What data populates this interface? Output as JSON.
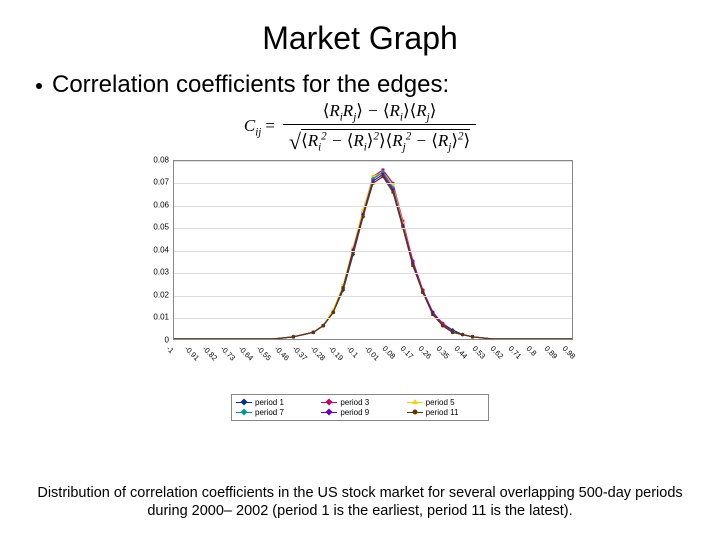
{
  "title": "Market Graph",
  "bullet": "Correlation coefficients for the edges:",
  "formula": {
    "lhs_var": "C",
    "lhs_sub": "ij",
    "num": "⟨R_i R_j⟩ − ⟨R_i⟩⟨R_j⟩",
    "den": "√(⟨R_i² − ⟨R_i⟩²⟩⟨R_j² − ⟨R_j⟩²⟩)"
  },
  "chart": {
    "type": "line",
    "background_color": "#ffffff",
    "border_color": "#888888",
    "grid_color": "#dddddd",
    "ylim": [
      0,
      0.08
    ],
    "ytick_step": 0.01,
    "yticks": [
      "0",
      "0.01",
      "0.02",
      "0.03",
      "0.04",
      "0.05",
      "0.06",
      "0.07",
      "0.08"
    ],
    "xlim": [
      -1,
      1
    ],
    "xticks": [
      "-1",
      "-0.91",
      "-0.82",
      "-0.73",
      "-0.64",
      "-0.55",
      "-0.46",
      "-0.37",
      "-0.28",
      "-0.19",
      "-0.1",
      "-0.01",
      "0.08",
      "0.17",
      "0.26",
      "0.35",
      "0.44",
      "0.53",
      "0.62",
      "0.71",
      "0.8",
      "0.89",
      "0.98"
    ],
    "axis_fontsize": 8,
    "x_positions": [
      -1,
      -0.9,
      -0.8,
      -0.7,
      -0.6,
      -0.5,
      -0.4,
      -0.3,
      -0.25,
      -0.2,
      -0.15,
      -0.1,
      -0.05,
      0,
      0.05,
      0.1,
      0.15,
      0.2,
      0.25,
      0.3,
      0.35,
      0.4,
      0.45,
      0.5,
      0.6,
      0.7,
      0.8,
      0.9,
      1
    ],
    "series": [
      {
        "name": "period 1",
        "color": "#003399",
        "marker": "diamond",
        "values": [
          0,
          0,
          0,
          0,
          0,
          0,
          0.001,
          0.003,
          0.006,
          0.012,
          0.022,
          0.038,
          0.055,
          0.072,
          0.075,
          0.068,
          0.052,
          0.035,
          0.022,
          0.012,
          0.007,
          0.004,
          0.002,
          0.001,
          0,
          0,
          0,
          0,
          0
        ]
      },
      {
        "name": "period 3",
        "color": "#cc0066",
        "marker": "square",
        "values": [
          0,
          0,
          0,
          0,
          0,
          0,
          0.001,
          0.003,
          0.006,
          0.012,
          0.024,
          0.04,
          0.057,
          0.073,
          0.076,
          0.07,
          0.053,
          0.035,
          0.022,
          0.012,
          0.007,
          0.003,
          0.002,
          0.001,
          0,
          0,
          0,
          0,
          0
        ]
      },
      {
        "name": "period 5",
        "color": "#ffcc00",
        "marker": "triangle",
        "values": [
          0,
          0,
          0,
          0,
          0,
          0,
          0.001,
          0.003,
          0.006,
          0.013,
          0.024,
          0.041,
          0.058,
          0.073,
          0.075,
          0.069,
          0.052,
          0.034,
          0.021,
          0.012,
          0.006,
          0.003,
          0.002,
          0.001,
          0,
          0,
          0,
          0,
          0
        ]
      },
      {
        "name": "period 7",
        "color": "#009999",
        "marker": "diamond",
        "values": [
          0,
          0,
          0,
          0,
          0,
          0,
          0.001,
          0.003,
          0.006,
          0.012,
          0.023,
          0.039,
          0.056,
          0.072,
          0.075,
          0.068,
          0.051,
          0.034,
          0.021,
          0.012,
          0.006,
          0.003,
          0.002,
          0.001,
          0,
          0,
          0,
          0,
          0
        ]
      },
      {
        "name": "period 9",
        "color": "#6600cc",
        "marker": "square",
        "values": [
          0,
          0,
          0,
          0,
          0,
          0,
          0.001,
          0.003,
          0.006,
          0.012,
          0.023,
          0.04,
          0.056,
          0.071,
          0.074,
          0.067,
          0.051,
          0.034,
          0.021,
          0.012,
          0.006,
          0.003,
          0.002,
          0.001,
          0,
          0,
          0,
          0,
          0
        ]
      },
      {
        "name": "period 11",
        "color": "#663300",
        "marker": "round",
        "values": [
          0,
          0,
          0,
          0,
          0,
          0,
          0.001,
          0.003,
          0.006,
          0.012,
          0.023,
          0.039,
          0.055,
          0.07,
          0.073,
          0.066,
          0.05,
          0.033,
          0.021,
          0.011,
          0.006,
          0.003,
          0.002,
          0.001,
          0,
          0,
          0,
          0,
          0
        ]
      }
    ],
    "legend_labels": [
      "period 1",
      "period 3",
      "period 5",
      "period 7",
      "period 9",
      "period 11"
    ],
    "legend_colors": [
      "#003399",
      "#cc0066",
      "#ffcc00",
      "#009999",
      "#6600cc",
      "#663300"
    ],
    "legend_markers": [
      "diamond",
      "square",
      "triangle",
      "diamond",
      "square",
      "round"
    ]
  },
  "caption": "Distribution of correlation coefficients in the US stock market for several overlapping 500-day periods during 2000– 2002 (period 1 is the earliest, period 11 is the latest)."
}
